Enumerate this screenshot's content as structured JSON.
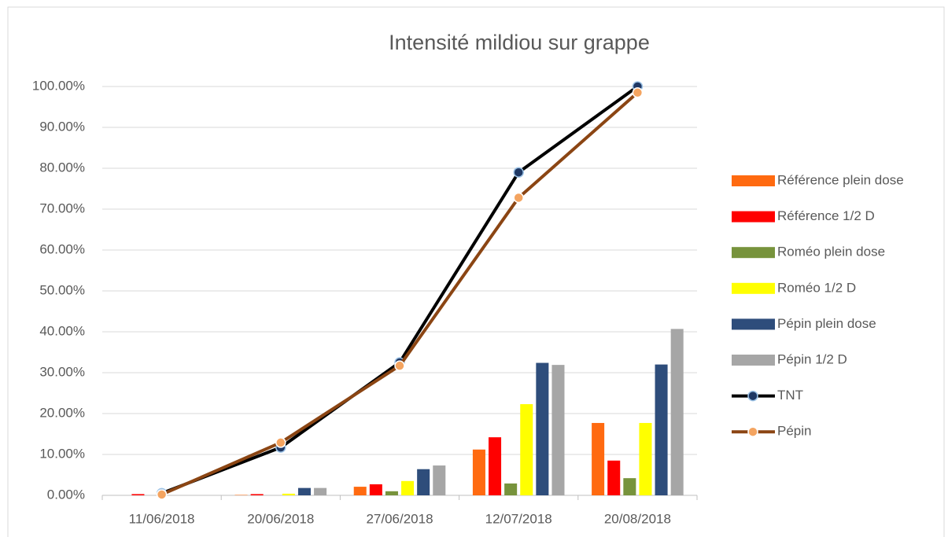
{
  "chart_data": {
    "type": "combo",
    "title": "Intensité mildiou sur grappe",
    "categories": [
      "11/06/2018",
      "20/06/2018",
      "27/06/2018",
      "12/07/2018",
      "20/08/2018"
    ],
    "ylim": [
      0,
      100
    ],
    "yticks": [
      {
        "value": 0,
        "label": "0.00%"
      },
      {
        "value": 10,
        "label": "10.00%"
      },
      {
        "value": 20,
        "label": "20.00%"
      },
      {
        "value": 30,
        "label": "30.00%"
      },
      {
        "value": 40,
        "label": "40.00%"
      },
      {
        "value": 50,
        "label": "50.00%"
      },
      {
        "value": 60,
        "label": "60.00%"
      },
      {
        "value": 70,
        "label": "70.00%"
      },
      {
        "value": 80,
        "label": "80.00%"
      },
      {
        "value": 90,
        "label": "90.00%"
      },
      {
        "value": 100,
        "label": "100.00%"
      }
    ],
    "grid": true,
    "legend": "right",
    "series": [
      {
        "name": "Référence plein dose",
        "type": "bar",
        "color": "#ff6a10",
        "values": [
          0,
          0.1,
          2.1,
          11.2,
          17.7
        ]
      },
      {
        "name": "Référence 1/2 D",
        "type": "bar",
        "color": "#ff0000",
        "values": [
          0.3,
          0.3,
          2.7,
          14.2,
          8.5
        ]
      },
      {
        "name": "Roméo plein dose",
        "type": "bar",
        "color": "#77933c",
        "values": [
          0,
          0,
          1,
          2.9,
          4.2
        ]
      },
      {
        "name": "Roméo 1/2 D",
        "type": "bar",
        "color": "#ffff00",
        "values": [
          0,
          0.4,
          3.5,
          22.3,
          17.7
        ]
      },
      {
        "name": "Pépin plein dose",
        "type": "bar",
        "color": "#2e4d7b",
        "values": [
          0,
          1.8,
          6.4,
          32.4,
          32
        ]
      },
      {
        "name": "Pépin 1/2 D",
        "type": "bar",
        "color": "#a6a6a6",
        "values": [
          0,
          1.8,
          7.3,
          31.9,
          40.7
        ]
      },
      {
        "name": "TNT",
        "type": "line",
        "color": "#000000",
        "marker_color": "#1f3864",
        "values": [
          0.5,
          11.7,
          32.5,
          79,
          100
        ]
      },
      {
        "name": "Pépin",
        "type": "line",
        "color": "#8b4513",
        "marker_color": "#f4a460",
        "values": [
          0.2,
          12.9,
          31.7,
          72.8,
          98.5
        ]
      }
    ]
  }
}
